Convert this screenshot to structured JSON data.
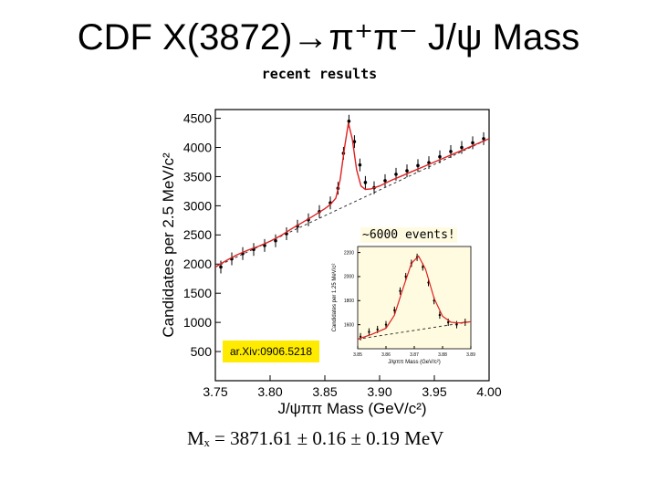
{
  "title": {
    "text": "CDF X(3872)",
    "arrow": "→",
    "pions": "π⁺π⁻",
    "rest": " J/ψ Mass"
  },
  "subtitle": "recent results",
  "annotations": {
    "inset_label": "~6000 events!",
    "arxiv": "ar.Xiv:0906.5218",
    "result": "Mₓ = 3871.61 ± 0.16 ± 0.19 MeV"
  },
  "colors": {
    "fit_line": "#e02020",
    "data_points": "#000000",
    "arxiv_badge": "#ffeb00",
    "inset_background": "#fffbe0",
    "background_line": "#333333"
  },
  "chart_data": [
    {
      "type": "scatter",
      "title": "",
      "xlabel": "J/ψππ Mass (GeV/c²)",
      "ylabel": "Candidates per 2.5 MeV/c²",
      "xlim": [
        3.75,
        4.0
      ],
      "ylim": [
        0,
        4650
      ],
      "xticks": [
        3.75,
        3.8,
        3.85,
        3.9,
        3.95,
        4.0
      ],
      "xtick_labels": [
        "3.75",
        "3.80",
        "3.85",
        "3.90",
        "3.95",
        "4.00"
      ],
      "yticks": [
        500,
        1000,
        1500,
        2000,
        2500,
        3000,
        3500,
        4000,
        4500
      ],
      "ytick_labels": [
        "500",
        "1000",
        "1500",
        "2000",
        "2500",
        "3000",
        "3500",
        "4000",
        "4500"
      ],
      "series": [
        {
          "name": "data",
          "x": [
            3.755,
            3.765,
            3.775,
            3.785,
            3.795,
            3.805,
            3.815,
            3.825,
            3.835,
            3.845,
            3.855,
            3.862,
            3.867,
            3.872,
            3.877,
            3.882,
            3.887,
            3.895,
            3.905,
            3.915,
            3.925,
            3.935,
            3.945,
            3.955,
            3.965,
            3.975,
            3.985,
            3.995
          ],
          "y": [
            1950,
            2090,
            2180,
            2250,
            2320,
            2400,
            2520,
            2650,
            2760,
            2900,
            3050,
            3300,
            3900,
            4450,
            4100,
            3700,
            3400,
            3310,
            3430,
            3540,
            3600,
            3690,
            3740,
            3840,
            3930,
            4000,
            4080,
            4150
          ]
        },
        {
          "name": "fit",
          "x": [
            3.75,
            3.76,
            3.77,
            3.78,
            3.79,
            3.8,
            3.81,
            3.82,
            3.83,
            3.84,
            3.85,
            3.855,
            3.86,
            3.864,
            3.868,
            3.8715,
            3.875,
            3.879,
            3.883,
            3.887,
            3.892,
            3.9,
            3.91,
            3.92,
            3.93,
            3.94,
            3.95,
            3.96,
            3.97,
            3.98,
            3.99,
            4.0
          ],
          "y": [
            1950,
            2060,
            2160,
            2240,
            2310,
            2390,
            2490,
            2610,
            2720,
            2830,
            2950,
            3020,
            3130,
            3450,
            4000,
            4420,
            4150,
            3620,
            3340,
            3280,
            3290,
            3340,
            3430,
            3510,
            3590,
            3670,
            3750,
            3830,
            3910,
            3990,
            4070,
            4150
          ]
        }
      ],
      "legend": "none",
      "grid": false
    },
    {
      "type": "scatter",
      "title": "inset",
      "xlabel": "J/ψππ Mass (GeV/c²)",
      "ylabel": "Candidates per 1.25 MeV/c²",
      "xlim": [
        3.85,
        3.89
      ],
      "ylim": [
        1400,
        2250
      ],
      "xticks": [
        3.85,
        3.86,
        3.87,
        3.88,
        3.89
      ],
      "xtick_labels": [
        "3.85",
        "3.86",
        "3.87",
        "3.88",
        "3.89"
      ],
      "yticks": [
        1600,
        1800,
        2000,
        2200
      ],
      "ytick_labels": [
        "1600",
        "1800",
        "2000",
        "2200"
      ],
      "series": [
        {
          "name": "data",
          "x": [
            3.851,
            3.854,
            3.857,
            3.86,
            3.863,
            3.865,
            3.867,
            3.869,
            3.871,
            3.873,
            3.875,
            3.877,
            3.879,
            3.882,
            3.885,
            3.888
          ],
          "y": [
            1500,
            1540,
            1560,
            1600,
            1720,
            1880,
            2000,
            2110,
            2160,
            2080,
            1950,
            1800,
            1680,
            1620,
            1600,
            1620
          ]
        },
        {
          "name": "fit",
          "x": [
            3.85,
            3.855,
            3.86,
            3.863,
            3.866,
            3.869,
            3.8715,
            3.874,
            3.877,
            3.88,
            3.883,
            3.886,
            3.89
          ],
          "y": [
            1480,
            1520,
            1570,
            1680,
            1900,
            2110,
            2170,
            2060,
            1820,
            1670,
            1620,
            1615,
            1625
          ]
        }
      ],
      "legend": "none",
      "grid": false
    }
  ]
}
